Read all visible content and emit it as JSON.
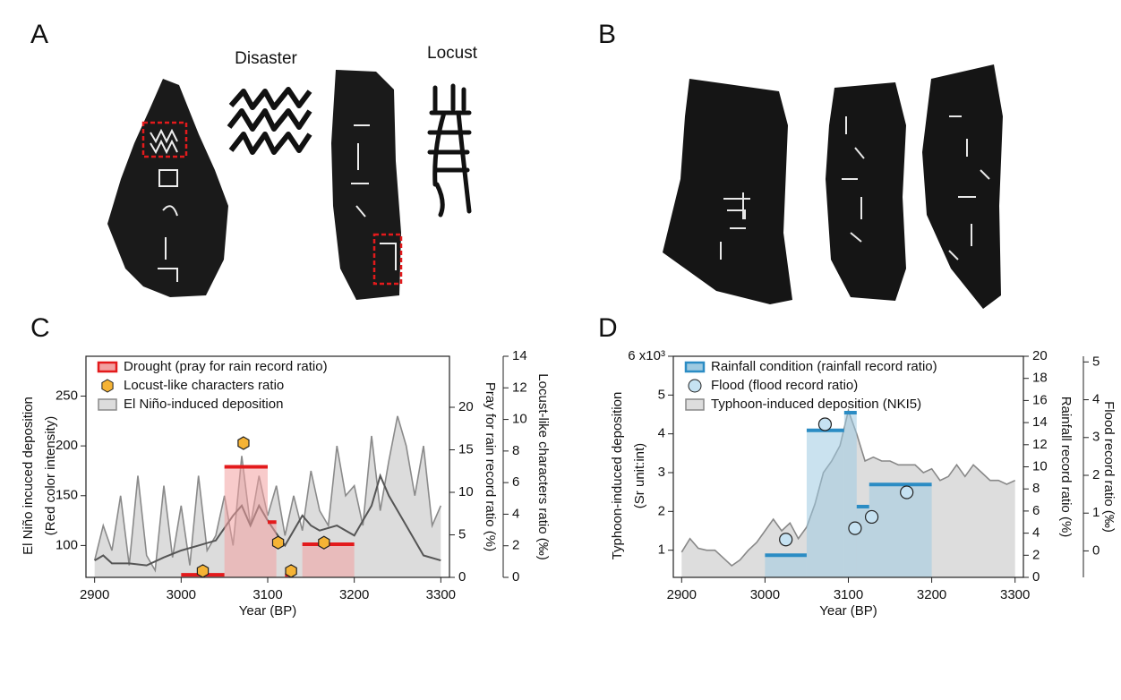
{
  "panel_labels": [
    "A",
    "B",
    "C",
    "D"
  ],
  "image_captions": [
    "Disaster",
    "Locust"
  ],
  "chart_data": [
    {
      "type": "combo",
      "xlabel": "Year (BP)",
      "ylabel": [
        "El Niño incuced deposition",
        "(Red color intensity)"
      ],
      "y2label": "Pray for rain record ratio (%)",
      "y3label": "Locust-like characters ratio (‰)",
      "xlim": [
        2890,
        3310
      ],
      "xticks": [
        2900,
        3000,
        3100,
        3200,
        3300
      ],
      "ylim": [
        68,
        290
      ],
      "yticks": [
        100,
        150,
        200,
        250
      ],
      "y2lim": [
        0,
        26
      ],
      "y2ticks": [
        0,
        5,
        10,
        15,
        20
      ],
      "y3lim": [
        0,
        14
      ],
      "y3ticks": [
        0,
        2,
        4,
        6,
        8,
        10,
        12,
        14
      ],
      "series": [
        {
          "name": "Drought (pray for rain record ratio)",
          "type": "bar",
          "axis": "y2",
          "color": "#e31a1c",
          "fill": "#f2a0a0",
          "bins": [
            3000,
            3050,
            3100,
            3110,
            3120,
            3130,
            3140,
            3200
          ],
          "values": [
            0.3,
            13.0,
            6.5,
            null,
            0.3,
            null,
            3.9
          ]
        },
        {
          "name": "Locust-like characters ratio",
          "type": "scatter",
          "axis": "y3",
          "marker": "hexagon",
          "color": "#f5b335",
          "x": [
            3025,
            3072,
            3112,
            3127,
            3165
          ],
          "values": [
            0.4,
            8.5,
            2.2,
            0.4,
            2.2
          ]
        },
        {
          "name": "El Niño-induced deposition",
          "type": "area",
          "axis": "y",
          "color": "#dcdcdc",
          "line_color": "#8a8a8a",
          "x": [
            2900,
            2910,
            2920,
            2930,
            2940,
            2950,
            2960,
            2970,
            2980,
            2990,
            3000,
            3010,
            3020,
            3030,
            3040,
            3050,
            3060,
            3070,
            3080,
            3090,
            3100,
            3110,
            3120,
            3130,
            3140,
            3150,
            3160,
            3170,
            3180,
            3190,
            3200,
            3210,
            3220,
            3230,
            3240,
            3250,
            3260,
            3270,
            3280,
            3290,
            3300
          ],
          "values": [
            85,
            120,
            95,
            150,
            80,
            170,
            90,
            75,
            160,
            88,
            140,
            80,
            170,
            95,
            110,
            150,
            100,
            190,
            120,
            170,
            130,
            160,
            110,
            150,
            115,
            175,
            135,
            120,
            200,
            150,
            160,
            120,
            210,
            135,
            185,
            230,
            200,
            150,
            200,
            120,
            140
          ]
        },
        {
          "type": "line",
          "axis": "y",
          "color": "#555555",
          "x": [
            2900,
            2910,
            2920,
            2940,
            2960,
            2980,
            3000,
            3020,
            3040,
            3060,
            3070,
            3080,
            3090,
            3100,
            3110,
            3120,
            3140,
            3150,
            3160,
            3180,
            3200,
            3220,
            3230,
            3240,
            3260,
            3280,
            3300
          ],
          "values": [
            85,
            90,
            82,
            82,
            80,
            88,
            95,
            100,
            105,
            130,
            140,
            120,
            140,
            125,
            112,
            100,
            130,
            120,
            115,
            120,
            110,
            140,
            170,
            150,
            120,
            90,
            85
          ]
        }
      ]
    },
    {
      "type": "combo",
      "xlabel": "Year (BP)",
      "ylabel": [
        "Typhoon-induced deposition",
        "(Sr unit:int)"
      ],
      "y2label": "Rainfall record ratio (%)",
      "y3label": "Flood record ratio (‰)",
      "xlim": [
        2890,
        3310
      ],
      "xticks": [
        2900,
        3000,
        3100,
        3200,
        3300
      ],
      "ylim": [
        0.3,
        6
      ],
      "yticks": [
        1,
        2,
        3,
        4,
        5,
        {
          "value": 6,
          "label": "6 x10³"
        }
      ],
      "y2lim": [
        0,
        20
      ],
      "y2ticks": [
        0,
        2,
        4,
        6,
        8,
        10,
        12,
        14,
        16,
        18,
        20
      ],
      "y3lim": [
        -0.7,
        5.15
      ],
      "y3ticks": [
        0,
        1,
        2,
        3,
        4,
        5
      ],
      "series": [
        {
          "name": "Rainfall condition (rainfall record ratio)",
          "type": "bar",
          "axis": "y2",
          "color": "#2b8cc4",
          "fill": "#9ecae1",
          "bins": [
            3000,
            3050,
            3095,
            3110,
            3125,
            3200
          ],
          "values": [
            2.0,
            13.3,
            14.9,
            6.4,
            8.4
          ]
        },
        {
          "name": "Flood (flood record ratio)",
          "type": "scatter",
          "axis": "y3",
          "marker": "circle",
          "color": "#c6e2f2",
          "x": [
            3025,
            3072,
            3108,
            3128,
            3170
          ],
          "values": [
            0.3,
            3.35,
            0.6,
            0.9,
            1.55
          ]
        },
        {
          "name": "Typhoon-induced deposition (NKI5)",
          "type": "area",
          "axis": "y",
          "color": "#dddddd",
          "line_color": "#888888",
          "x": [
            2900,
            2910,
            2920,
            2930,
            2940,
            2950,
            2960,
            2970,
            2980,
            2990,
            3000,
            3010,
            3020,
            3030,
            3040,
            3050,
            3060,
            3070,
            3080,
            3090,
            3100,
            3110,
            3120,
            3130,
            3140,
            3150,
            3160,
            3170,
            3180,
            3190,
            3200,
            3210,
            3220,
            3230,
            3240,
            3250,
            3260,
            3270,
            3280,
            3290,
            3300
          ],
          "values": [
            0.95,
            1.3,
            1.05,
            1.0,
            1.0,
            0.8,
            0.6,
            0.75,
            1.0,
            1.2,
            1.5,
            1.8,
            1.5,
            1.7,
            1.3,
            1.6,
            2.2,
            3.0,
            3.3,
            3.7,
            4.6,
            4.0,
            3.3,
            3.4,
            3.3,
            3.3,
            3.2,
            3.2,
            3.2,
            3.0,
            3.1,
            2.8,
            2.9,
            3.2,
            2.9,
            3.2,
            3.0,
            2.8,
            2.8,
            2.7,
            2.8
          ]
        }
      ]
    }
  ]
}
